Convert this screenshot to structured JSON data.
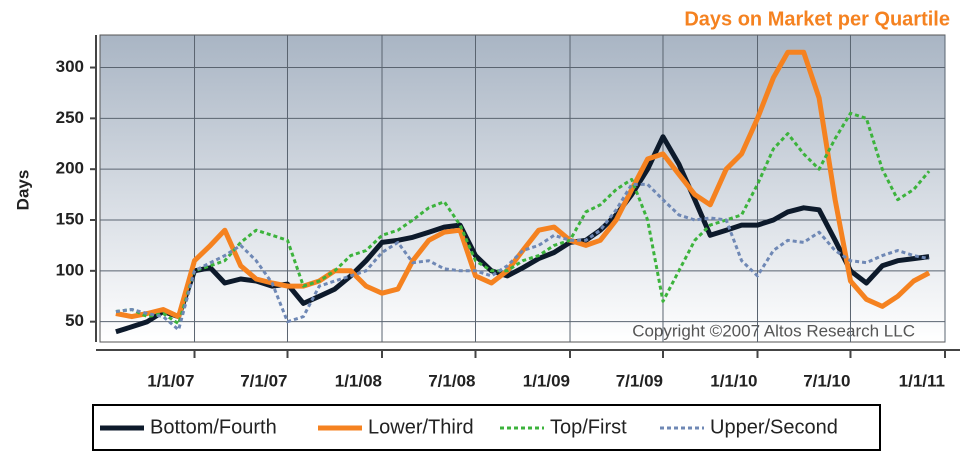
{
  "chart_data": {
    "type": "line",
    "title": "Days on Market per Quartile",
    "y_label": "Days",
    "annotation": "Copyright ©2007 Altos Research LLC",
    "x": [
      "8/1/06",
      "9/1/06",
      "10/1/06",
      "11/1/06",
      "12/1/06",
      "1/1/07",
      "2/1/07",
      "3/1/07",
      "4/1/07",
      "5/1/07",
      "6/1/07",
      "7/1/07",
      "8/1/07",
      "9/1/07",
      "10/1/07",
      "11/1/07",
      "12/1/07",
      "1/1/08",
      "2/1/08",
      "3/1/08",
      "4/1/08",
      "5/1/08",
      "6/1/08",
      "7/1/08",
      "8/1/08",
      "9/1/08",
      "10/1/08",
      "11/1/08",
      "12/1/08",
      "1/1/09",
      "2/1/09",
      "3/1/09",
      "4/1/09",
      "5/1/09",
      "6/1/09",
      "7/1/09",
      "8/1/09",
      "9/1/09",
      "10/1/09",
      "11/1/09",
      "12/1/09",
      "1/1/10",
      "2/1/10",
      "3/1/10",
      "4/1/10",
      "5/1/10",
      "6/1/10",
      "7/1/10",
      "8/1/10",
      "9/1/10",
      "10/1/10",
      "11/1/10",
      "12/1/10"
    ],
    "series": [
      {
        "name": "Bottom/Fourth",
        "color": "#0d1a2b",
        "dash": "solid",
        "values": [
          40,
          45,
          50,
          60,
          55,
          100,
          103,
          88,
          92,
          90,
          85,
          87,
          68,
          75,
          82,
          95,
          110,
          128,
          130,
          133,
          138,
          143,
          145,
          115,
          100,
          95,
          103,
          112,
          118,
          128,
          130,
          140,
          155,
          175,
          200,
          232,
          205,
          170,
          135,
          140,
          145,
          145,
          150,
          158,
          162,
          160,
          130,
          100,
          88,
          105,
          110,
          112,
          114
        ]
      },
      {
        "name": "Lower/Third",
        "color": "#f58220",
        "dash": "solid",
        "values": [
          58,
          55,
          58,
          62,
          55,
          110,
          125,
          140,
          105,
          92,
          88,
          85,
          85,
          90,
          100,
          100,
          85,
          78,
          82,
          110,
          130,
          138,
          140,
          95,
          88,
          100,
          120,
          140,
          143,
          130,
          125,
          130,
          150,
          180,
          210,
          215,
          195,
          175,
          165,
          200,
          215,
          250,
          290,
          315,
          315,
          270,
          170,
          90,
          72,
          65,
          75,
          90,
          98
        ]
      },
      {
        "name": "Top/First",
        "color": "#3cb33c",
        "dash": "dotted",
        "values": [
          60,
          62,
          55,
          58,
          48,
          100,
          105,
          110,
          128,
          140,
          135,
          130,
          85,
          90,
          100,
          115,
          120,
          135,
          140,
          150,
          162,
          168,
          145,
          110,
          100,
          100,
          110,
          115,
          125,
          130,
          158,
          165,
          180,
          190,
          150,
          70,
          100,
          130,
          145,
          150,
          155,
          185,
          220,
          235,
          215,
          200,
          230,
          255,
          250,
          200,
          170,
          180,
          198
        ]
      },
      {
        "name": "Upper/Second",
        "color": "#6f88b5",
        "dash": "dotted",
        "values": [
          60,
          62,
          58,
          55,
          42,
          100,
          108,
          115,
          125,
          110,
          88,
          50,
          55,
          85,
          90,
          95,
          100,
          118,
          128,
          108,
          110,
          102,
          100,
          100,
          95,
          105,
          120,
          125,
          135,
          130,
          130,
          140,
          160,
          185,
          185,
          170,
          155,
          150,
          152,
          150,
          110,
          95,
          120,
          130,
          128,
          138,
          120,
          110,
          108,
          115,
          120,
          115,
          112
        ]
      }
    ],
    "xlim": [
      "7/1/06",
      "1/1/11"
    ],
    "xticks": [
      "1/1/07",
      "7/1/07",
      "1/1/08",
      "7/1/08",
      "1/1/09",
      "7/1/09",
      "1/1/10",
      "7/1/10",
      "1/1/11"
    ],
    "ylim": [
      30,
      332
    ],
    "yticks": [
      50,
      100,
      150,
      200,
      250,
      300
    ],
    "grid": true,
    "legend": "bottom"
  }
}
